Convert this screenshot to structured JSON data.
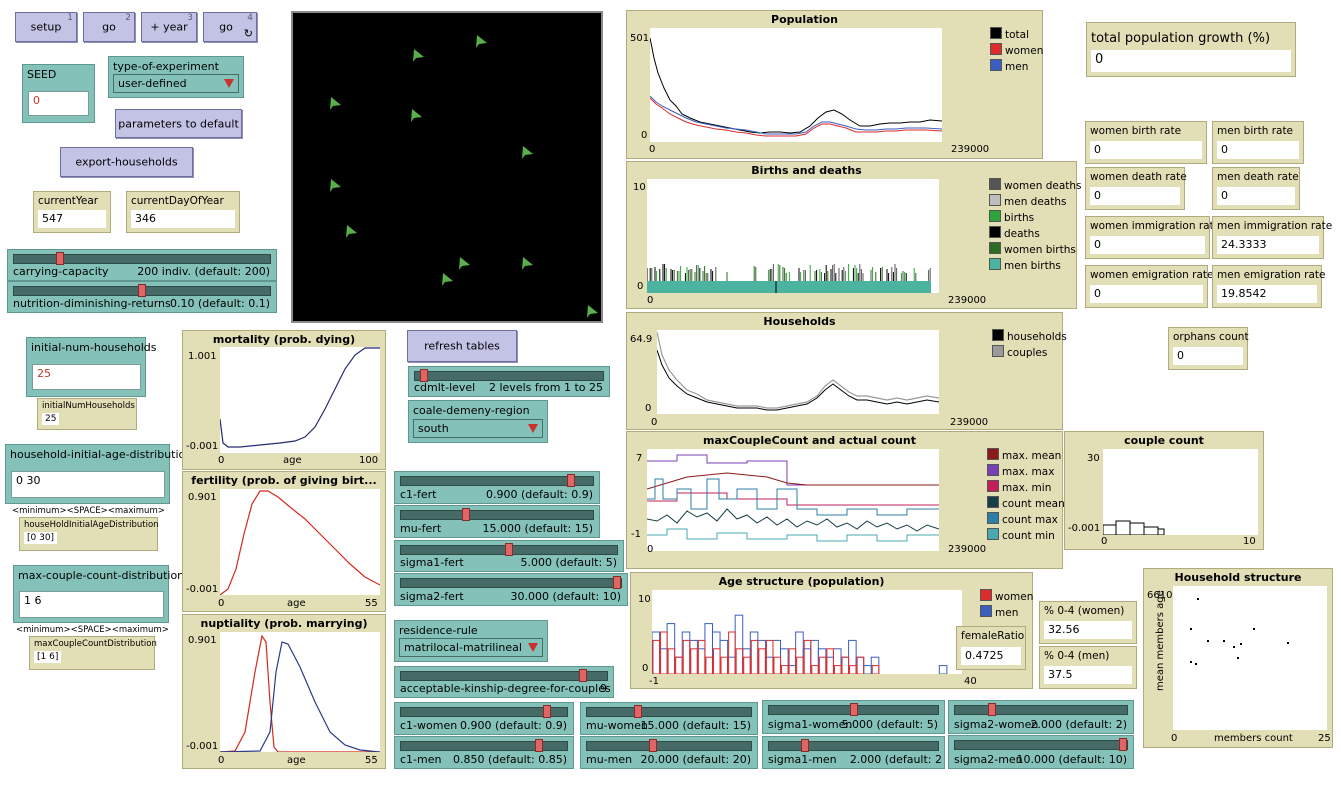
{
  "buttons": {
    "setup": {
      "label": "setup",
      "key": "1"
    },
    "go": {
      "label": "go",
      "key": "2"
    },
    "plus_year": {
      "label": "+ year",
      "key": "3"
    },
    "go_forever": {
      "label": "go",
      "key": "4"
    },
    "parameters_default": "parameters to default",
    "export_households": "export-households",
    "refresh_tables": "refresh tables"
  },
  "inputs": {
    "seed": {
      "label": "SEED",
      "value": "0"
    },
    "initial_num_households": {
      "label": "initial-num-households",
      "value": "25"
    },
    "household_initial_age_distribution": {
      "label": "household-initial-age-distribution",
      "value": "0 30"
    },
    "max_couple_count_distribution": {
      "label": "max-couple-count-distribution",
      "value": "1 6"
    }
  },
  "choosers": {
    "type_of_experiment": {
      "label": "type-of-experiment",
      "value": "user-defined"
    },
    "coale_demeny_region": {
      "label": "coale-demeny-region",
      "value": "south"
    },
    "residence_rule": {
      "label": "residence-rule",
      "value": "matrilocal-matrilineal"
    }
  },
  "notes": {
    "minmax1": "<minimum><SPACE><maximum>",
    "minmax2": "<minimum><SPACE><maximum>"
  },
  "monitors": {
    "currentYear": {
      "label": "currentYear",
      "value": "547"
    },
    "currentDayOfYear": {
      "label": "currentDayOfYear",
      "value": "346"
    },
    "initialNumHouseholds": {
      "label": "initialNumHouseholds",
      "value": "25"
    },
    "houseHoldInitialAgeDistribution": {
      "label": "houseHoldInitialAgeDistribution",
      "value": "[0 30]"
    },
    "maxCoupleCountDistribution": {
      "label": "maxCoupleCountDistribution",
      "value": "[1 6]"
    },
    "total_population_growth": {
      "label": "total population growth (%)",
      "value": "0"
    },
    "women_birth_rate": {
      "label": "women birth rate",
      "value": "0"
    },
    "men_birth_rate": {
      "label": "men birth rate",
      "value": "0"
    },
    "women_death_rate": {
      "label": "women death rate",
      "value": "0"
    },
    "men_death_rate": {
      "label": "men death rate",
      "value": "0"
    },
    "women_immigration_rate": {
      "label": "women immigration rate",
      "value": "0"
    },
    "men_immigration_rate": {
      "label": "men immigration rate",
      "value": "24.3333"
    },
    "women_emigration_rate": {
      "label": "women emigration rate",
      "value": "0"
    },
    "men_emigration_rate": {
      "label": "men emigration rate",
      "value": "19.8542"
    },
    "orphans_count": {
      "label": "orphans count",
      "value": "0"
    },
    "femaleRatio": {
      "label": "femaleRatio",
      "value": "0.4725"
    },
    "pct_women": {
      "label": "% 0-4 (women)",
      "value": "32.56"
    },
    "pct_men": {
      "label": "% 0-4 (men)",
      "value": "37.5"
    }
  },
  "sliders": {
    "carrying_capacity": {
      "name": "carrying-capacity",
      "value": "200 indiv. (default: 200)",
      "fraction": 0.17
    },
    "nutrition": {
      "name": "nutrition-diminishing-returns",
      "value": "0.10 (default: 0.1)",
      "fraction": 0.5
    },
    "cdmlt": {
      "name": "cdmlt-level",
      "value": "2 levels from 1 to 25",
      "fraction": 0.03
    },
    "c1_fert": {
      "name": "c1-fert",
      "value": "0.900 (default: 0.9)",
      "fraction": 0.9
    },
    "mu_fert": {
      "name": "mu-fert",
      "value": "15.000 (default: 15)",
      "fraction": 0.33
    },
    "sigma1_fert": {
      "name": "sigma1-fert",
      "value": "5.000 (default: 5)",
      "fraction": 0.5
    },
    "sigma2_fert": {
      "name": "sigma2-fert",
      "value": "30.000 (default: 10)",
      "fraction": 1.0
    },
    "kinship": {
      "name": "acceptable-kinship-degree-for-couples",
      "value": "9",
      "fraction": 0.9
    },
    "c1_women": {
      "name": "c1-women",
      "value": "0.900 (default: 0.9)",
      "fraction": 0.9
    },
    "mu_women": {
      "name": "mu-women",
      "value": "15.000 (default: 15)",
      "fraction": 0.3
    },
    "sigma1_women": {
      "name": "sigma1-women",
      "value": "5.000 (default: 5)",
      "fraction": 0.5
    },
    "sigma2_women": {
      "name": "sigma2-women",
      "value": "2.000 (default: 2)",
      "fraction": 0.2
    },
    "c1_men": {
      "name": "c1-men",
      "value": "0.850 (default: 0.85)",
      "fraction": 0.85
    },
    "mu_men": {
      "name": "mu-men",
      "value": "20.000 (default: 20)",
      "fraction": 0.4
    },
    "sigma1_men": {
      "name": "sigma1-men",
      "value": "2.000 (default: 2",
      "fraction": 0.2
    },
    "sigma2_men": {
      "name": "sigma2-men",
      "value": "10.000 (default: 10)",
      "fraction": 1.0
    }
  },
  "plots": {
    "population": {
      "title": "Population",
      "ymax": "501",
      "ymin": "0",
      "xmin": "0",
      "xmax": "239000",
      "legend": [
        {
          "label": "total",
          "color": "#000000"
        },
        {
          "label": "women",
          "color": "#e02b2b"
        },
        {
          "label": "men",
          "color": "#3b5fc0"
        }
      ]
    },
    "births_deaths": {
      "title": "Births and deaths",
      "ymax": "10",
      "ymin": "0",
      "xmin": "0",
      "xmax": "239000",
      "legend": [
        {
          "label": "women deaths",
          "color": "#555555"
        },
        {
          "label": "men deaths",
          "color": "#bdbdbd"
        },
        {
          "label": "births",
          "color": "#2fa43a"
        },
        {
          "label": "deaths",
          "color": "#000000"
        },
        {
          "label": "women births",
          "color": "#2d6a22"
        },
        {
          "label": "men births",
          "color": "#4cb3a0"
        }
      ]
    },
    "households": {
      "title": "Households",
      "ymax": "64.9",
      "ymin": "0",
      "xmin": "0",
      "xmax": "239000",
      "legend": [
        {
          "label": "households",
          "color": "#000000"
        },
        {
          "label": "couples",
          "color": "#9a9a9a"
        }
      ]
    },
    "max_couple": {
      "title": "maxCoupleCount and actual count",
      "ymax": "7",
      "ymin": "-1",
      "xmin": "0",
      "xmax": "239000",
      "legend": [
        {
          "label": "max. mean",
          "color": "#8a1a1a"
        },
        {
          "label": "max. max",
          "color": "#7b3fb5"
        },
        {
          "label": "max. min",
          "color": "#c21f5a"
        },
        {
          "label": "count mean",
          "color": "#163d48"
        },
        {
          "label": "count max",
          "color": "#2d7fa8"
        },
        {
          "label": "count min",
          "color": "#4aa8b0"
        }
      ]
    },
    "couple_count": {
      "title": "couple count",
      "ymax": "30",
      "ymin": "-0.001",
      "xmin": "0",
      "xmax": "10"
    },
    "age_structure": {
      "title": "Age structure (population)",
      "ymax": "10",
      "ymin": "0",
      "xmin": "-1",
      "xmax": "40",
      "legend": [
        {
          "label": "women",
          "color": "#e02b2b"
        },
        {
          "label": "men",
          "color": "#3b5fc0"
        }
      ]
    },
    "household_structure": {
      "title": "Household structure",
      "ymax": "6610",
      "xmin": "0",
      "xmax": "25",
      "xlabel": "members count",
      "ylabel": "mean members age"
    },
    "mortality": {
      "title": "mortality (prob. dying)",
      "ymax": "1.001",
      "ymin": "-0.001",
      "xmin": "0",
      "xmax": "100",
      "xlabel": "age"
    },
    "fertility": {
      "title": "fertility (prob. of giving birt...",
      "ymax": "0.901",
      "ymin": "-0.001",
      "xmin": "0",
      "xmax": "55",
      "xlabel": "age"
    },
    "nuptiality": {
      "title": "nuptiality (prob. marrying)",
      "ymax": "0.901",
      "ymin": "-0.001",
      "xmin": "0",
      "xmax": "55",
      "xlabel": "age"
    }
  },
  "colors": {
    "button": "#c3c3e6",
    "input": "#84c2b9",
    "monitor": "#e2deb6",
    "view_bg": "#000000",
    "agent": "#59b04a"
  }
}
